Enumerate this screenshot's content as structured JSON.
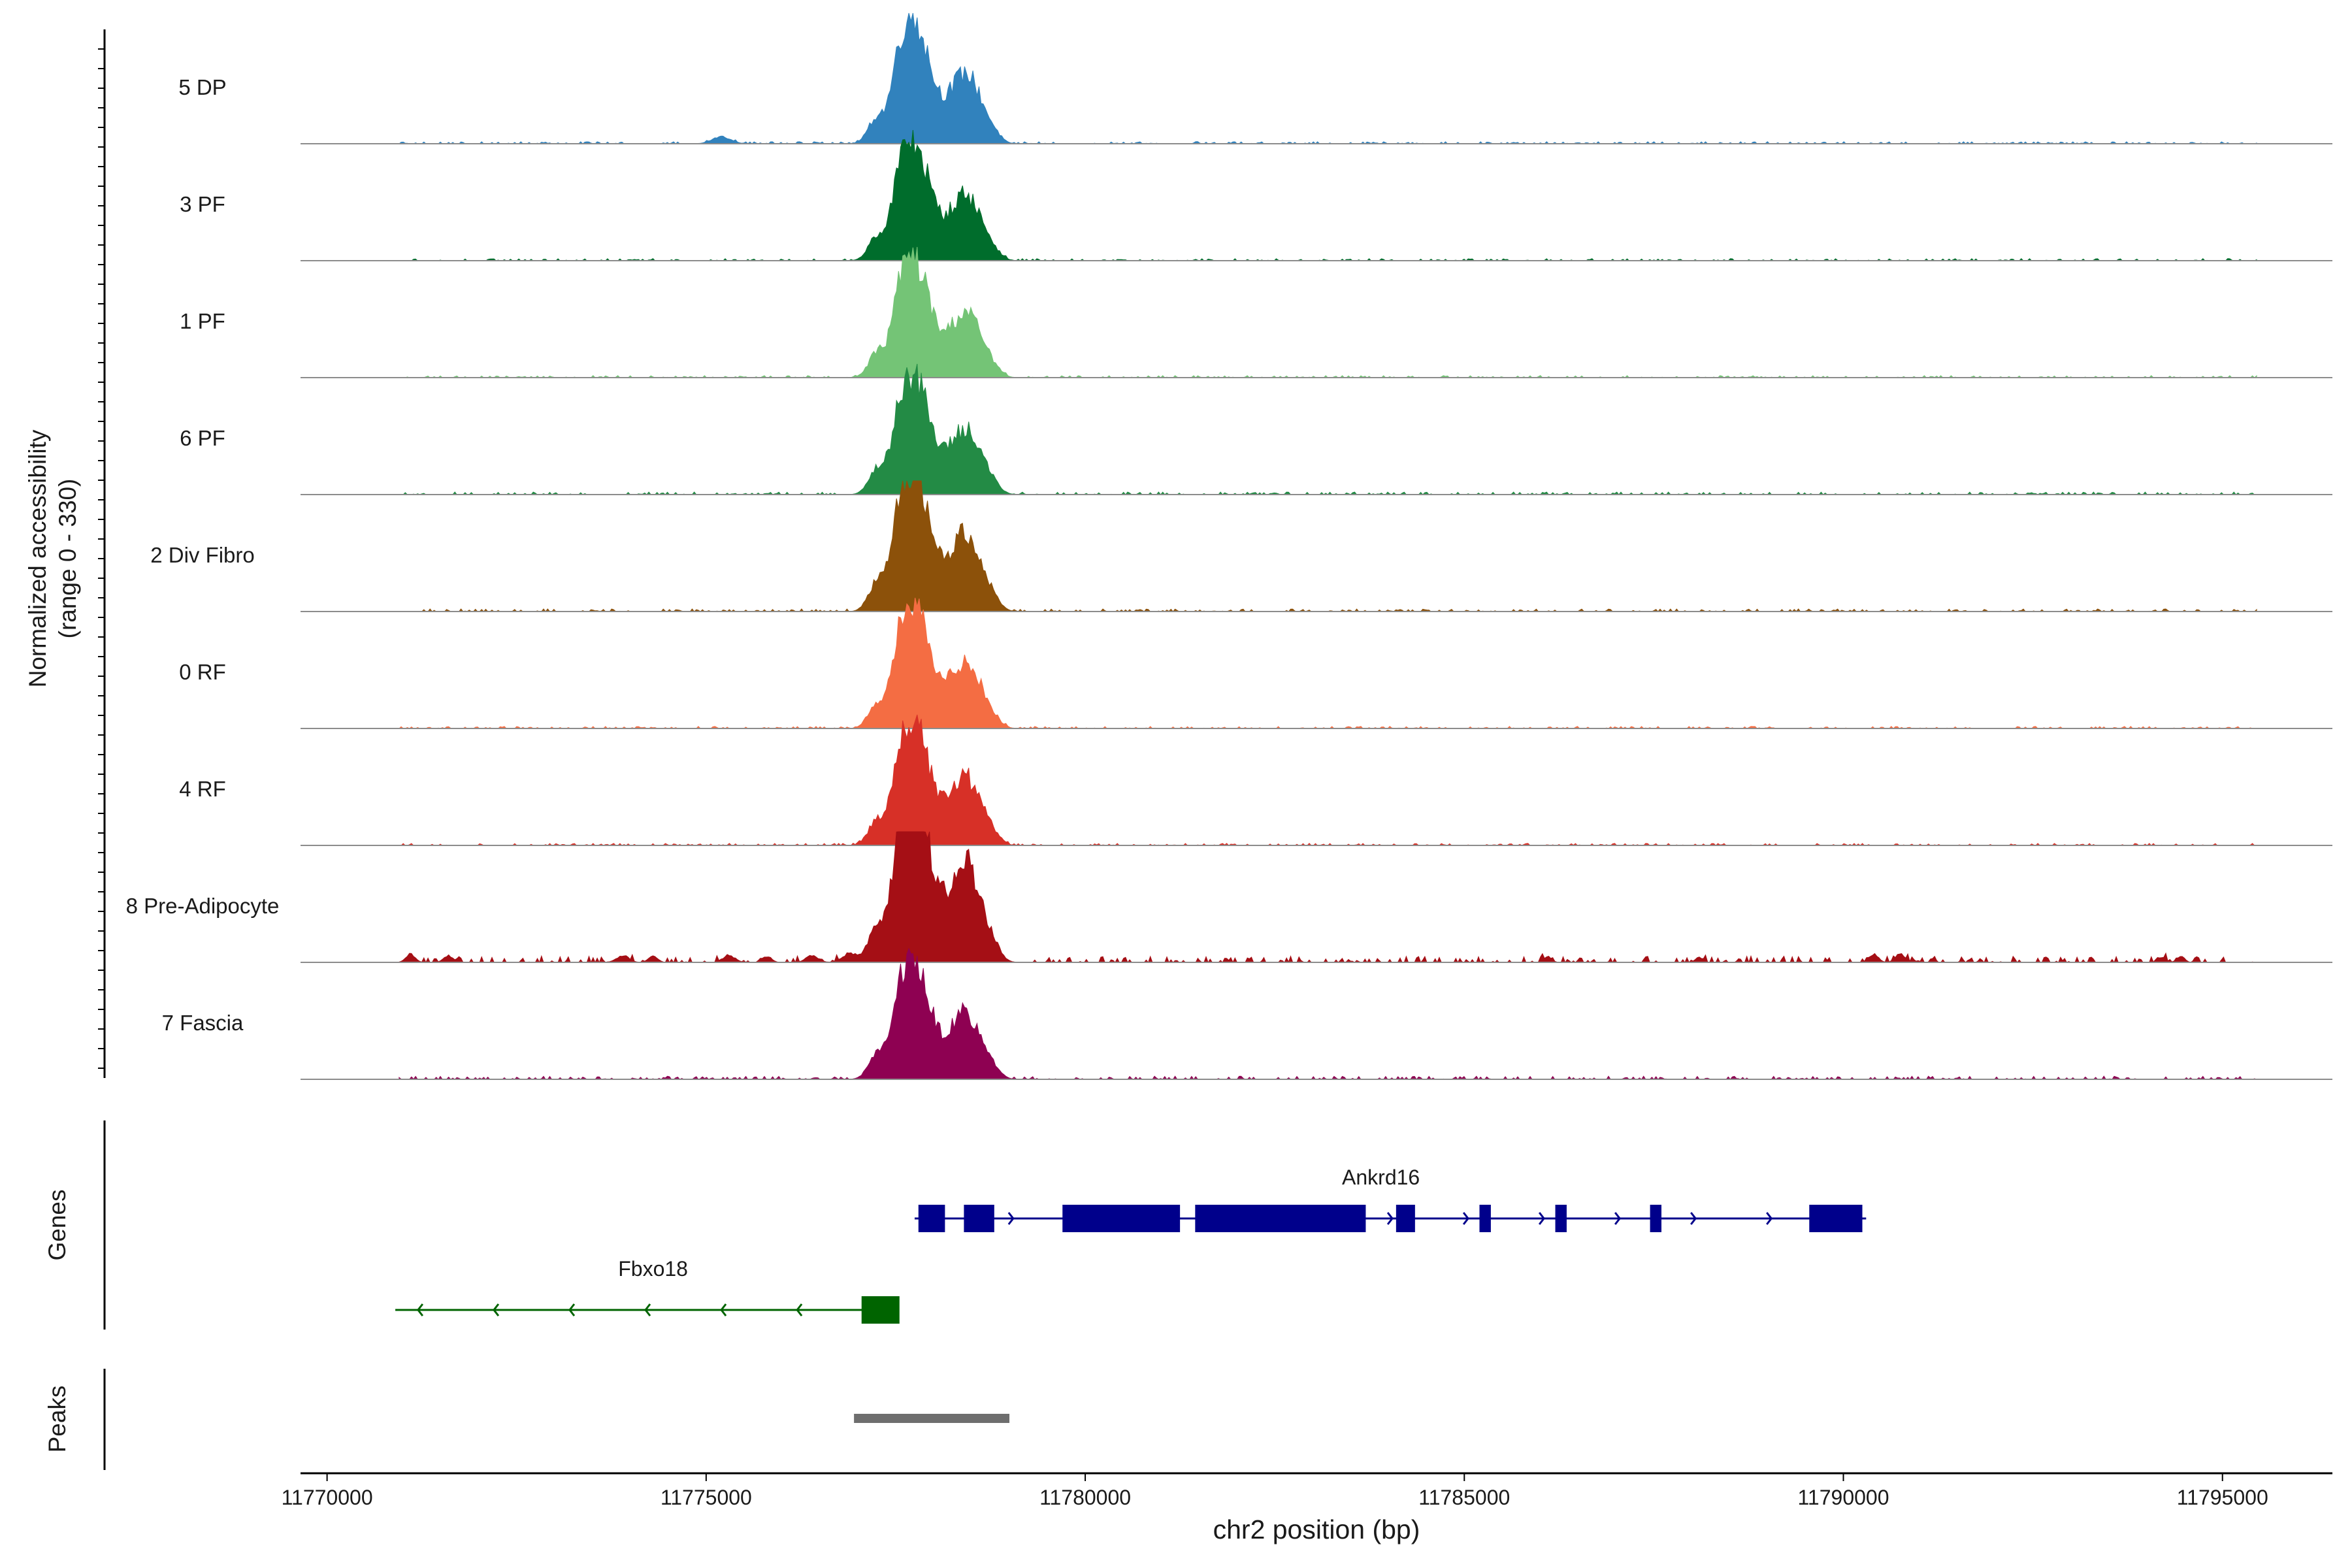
{
  "chart_data": {
    "type": "area",
    "title": "",
    "coverage": {
      "ylabel_line1": "Normalized accessibility",
      "ylabel_line2": "(range 0 - 330)",
      "ylim": [
        0,
        330
      ],
      "peak_shape": [
        {
          "pos": 11777250,
          "h": 0.3,
          "w": 110
        },
        {
          "pos": 11777530,
          "h": 0.55,
          "w": 110
        },
        {
          "pos": 11777700,
          "h": 1.0,
          "w": 150
        },
        {
          "pos": 11777870,
          "h": 0.62,
          "w": 150
        },
        {
          "pos": 11778080,
          "h": 0.26,
          "w": 130
        },
        {
          "pos": 11778250,
          "h": 0.35,
          "w": 100
        },
        {
          "pos": 11778430,
          "h": 0.7,
          "w": 110
        },
        {
          "pos": 11778600,
          "h": 0.3,
          "w": 90
        },
        {
          "pos": 11778750,
          "h": 0.2,
          "w": 110
        }
      ],
      "tracks": [
        {
          "name": "5 DP",
          "color": "#3182bd",
          "peak_height": 0.85,
          "noise": 0.02,
          "extra": [
            {
              "pos": 11775200,
              "h": 0.07,
              "w": 120
            }
          ]
        },
        {
          "name": "3 PF",
          "color": "#006d2c",
          "peak_height": 0.8,
          "noise": 0.02,
          "extra": []
        },
        {
          "name": "1 PF",
          "color": "#74c476",
          "peak_height": 0.8,
          "noise": 0.02,
          "extra": []
        },
        {
          "name": "6 PF",
          "color": "#238b45",
          "peak_height": 0.8,
          "noise": 0.025,
          "extra": []
        },
        {
          "name": "2 Div Fibro",
          "color": "#8c510a",
          "peak_height": 0.95,
          "noise": 0.025,
          "extra": []
        },
        {
          "name": "0 RF",
          "color": "#f46d43",
          "peak_height": 0.82,
          "noise": 0.02,
          "extra": []
        },
        {
          "name": "4 RF",
          "color": "#d73027",
          "peak_height": 0.82,
          "noise": 0.02,
          "extra": []
        },
        {
          "name": "8 Pre-Adipocyte",
          "color": "#a50f15",
          "peak_height": 1.2,
          "noise": 0.06,
          "extra": [
            {
              "pos": 11771100,
              "h": 0.08,
              "w": 60
            },
            {
              "pos": 11771600,
              "h": 0.07,
              "w": 60
            },
            {
              "pos": 11773900,
              "h": 0.07,
              "w": 80
            },
            {
              "pos": 11774300,
              "h": 0.06,
              "w": 60
            },
            {
              "pos": 11775300,
              "h": 0.07,
              "w": 80
            },
            {
              "pos": 11775800,
              "h": 0.06,
              "w": 60
            },
            {
              "pos": 11776400,
              "h": 0.07,
              "w": 80
            },
            {
              "pos": 11776900,
              "h": 0.09,
              "w": 100
            },
            {
              "pos": 11786100,
              "h": 0.06,
              "w": 50
            },
            {
              "pos": 11788100,
              "h": 0.05,
              "w": 50
            },
            {
              "pos": 11790400,
              "h": 0.08,
              "w": 60
            },
            {
              "pos": 11790750,
              "h": 0.09,
              "w": 60
            },
            {
              "pos": 11794200,
              "h": 0.05,
              "w": 50
            },
            {
              "pos": 11794450,
              "h": 0.06,
              "w": 50
            }
          ]
        },
        {
          "name": "7 Fascia",
          "color": "#8e0152",
          "peak_height": 0.8,
          "noise": 0.03,
          "extra": []
        }
      ]
    },
    "genes": {
      "label": "Genes",
      "items": [
        {
          "name": "Ankrd16",
          "strand": "+",
          "color": "#00008b",
          "start": 11777750,
          "end": 11790300,
          "exons": [
            [
              11777800,
              11778150
            ],
            [
              11778400,
              11778800
            ],
            [
              11779700,
              11781250
            ],
            [
              11781450,
              11783700
            ],
            [
              11784100,
              11784350
            ],
            [
              11785200,
              11785350
            ],
            [
              11786200,
              11786350
            ],
            [
              11787450,
              11787600
            ],
            [
              11789550,
              11790250
            ]
          ]
        },
        {
          "name": "Fbxo18",
          "strand": "-",
          "color": "#006400",
          "start": 11770900,
          "end": 11777500,
          "exons": [
            [
              11777050,
              11777550
            ]
          ]
        }
      ]
    },
    "peaks": {
      "label": "Peaks",
      "color": "#6e6e6e",
      "regions": [
        [
          11776950,
          11779000
        ]
      ]
    },
    "xaxis": {
      "label": "chr2 position (bp)",
      "xlim": [
        11769650,
        11796450
      ],
      "ticks": [
        "11770000",
        "11775000",
        "11780000",
        "11785000",
        "11790000",
        "11795000"
      ]
    }
  }
}
